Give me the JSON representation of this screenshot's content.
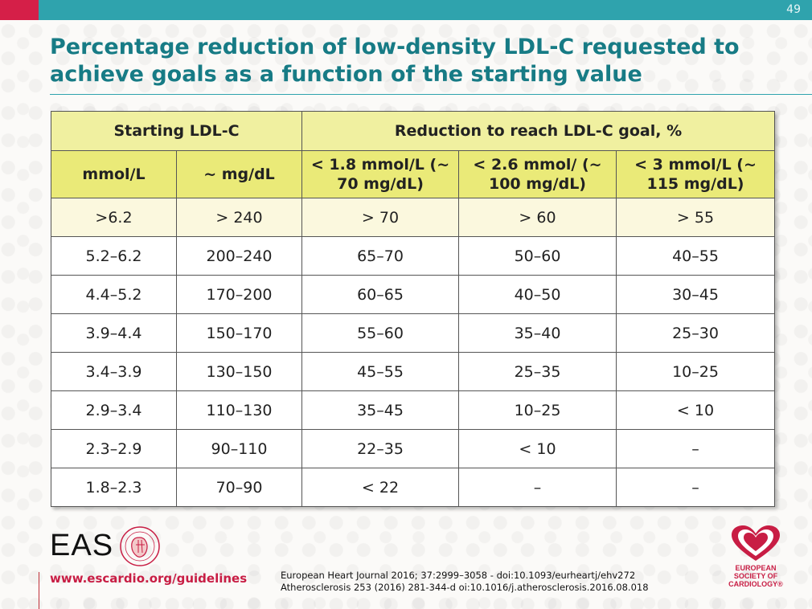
{
  "slide": {
    "page_number": "49"
  },
  "title": "Percentage reduction of low-density LDL-C requested to achieve goals as a function of the starting value",
  "table": {
    "header1": [
      "Starting LDL-C",
      "Reduction to reach LDL-C goal, %"
    ],
    "header2": [
      "mmol/L",
      "~ mg/dL",
      "< 1.8 mmol/L (~ 70 mg/dL)",
      "< 2.6 mmol/ (~ 100 mg/dL)",
      "< 3 mmol/L (~ 115 mg/dL)"
    ],
    "rows": [
      [
        ">6.2",
        "> 240",
        "> 70",
        "> 60",
        "> 55"
      ],
      [
        "5.2–6.2",
        "200–240",
        "65–70",
        "50–60",
        "40–55"
      ],
      [
        "4.4–5.2",
        "170–200",
        "60–65",
        "40–50",
        "30–45"
      ],
      [
        "3.9–4.4",
        "150–170",
        "55–60",
        "35–40",
        "25–30"
      ],
      [
        "3.4–3.9",
        "130–150",
        "45–55",
        "25–35",
        "10–25"
      ],
      [
        "2.9–3.4",
        "110–130",
        "35–45",
        "10–25",
        "< 10"
      ],
      [
        "2.3–2.9",
        "90–110",
        "22–35",
        "< 10",
        "–"
      ],
      [
        "1.8–2.3",
        "70–90",
        "< 22",
        "–",
        "–"
      ]
    ]
  },
  "footer": {
    "url": "www.escardio.org/guidelines",
    "reference_line1": "European Heart Journal 2016; 37:2999–3058 - doi:10.1093/eurheartj/ehv272",
    "reference_line2": "Atherosclerosis 253 (2016) 281-344-d oi:10.1016/j.atherosclerosis.2016.08.018",
    "eas_logo_text": "EAS",
    "esc_logo_line1": "EUROPEAN",
    "esc_logo_line2": "SOCIETY OF",
    "esc_logo_line3": "CARDIOLOGY®"
  },
  "colors": {
    "top_bar": "#2fa3ad",
    "accent_red": "#d51f48",
    "title": "#177b85",
    "header_light": "#f0f0a0",
    "header_dark": "#eaea78"
  }
}
